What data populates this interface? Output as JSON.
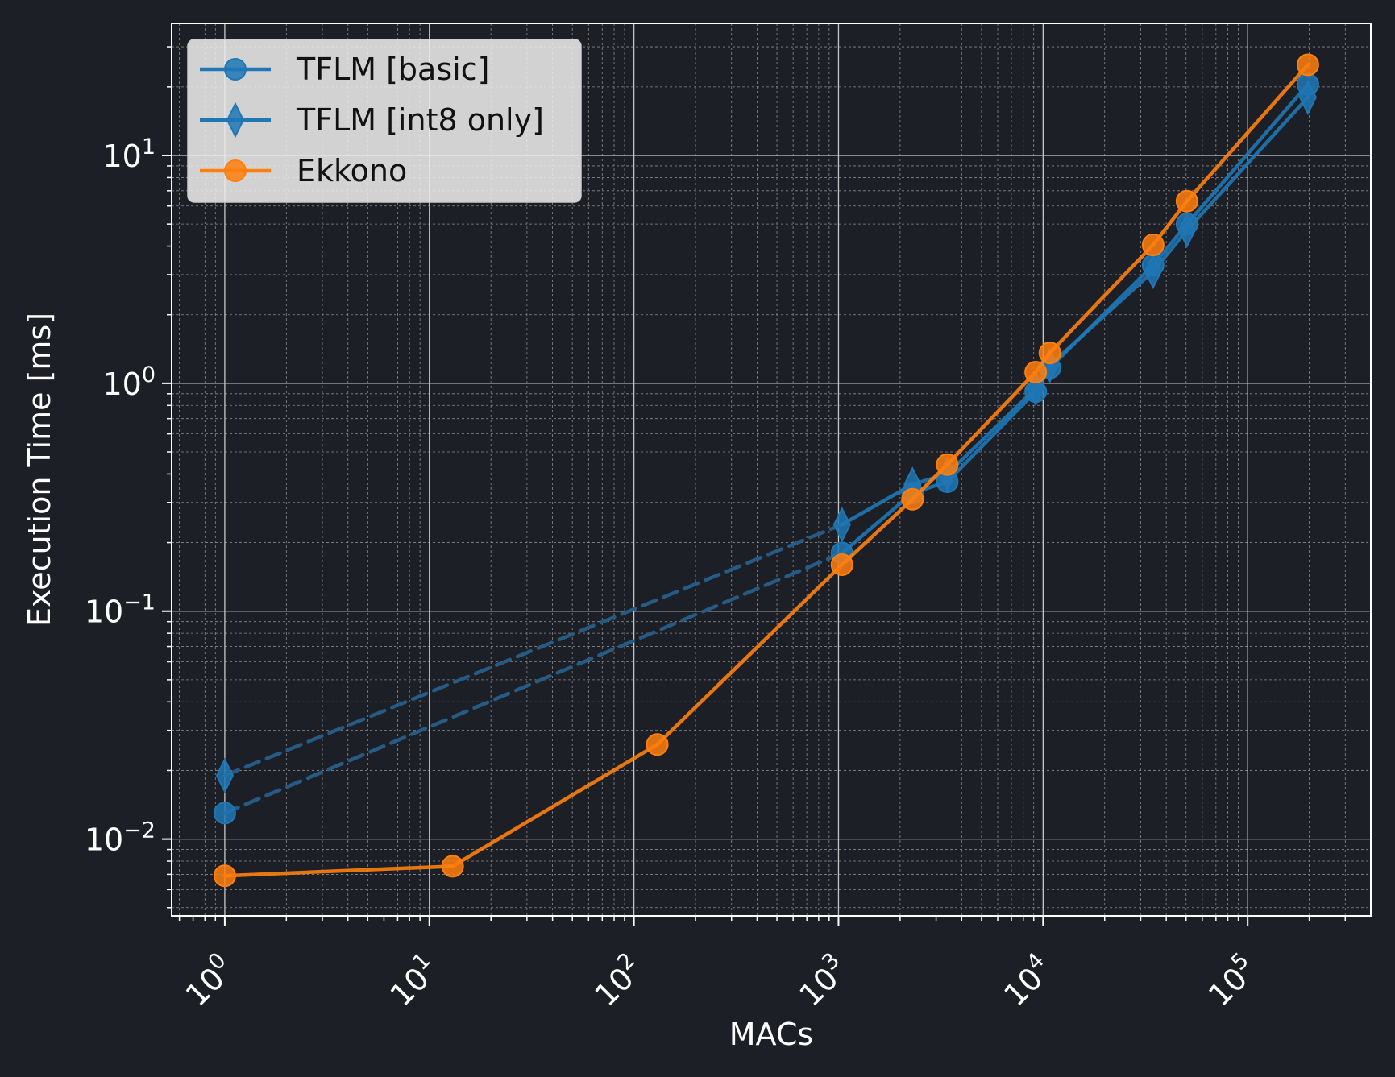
{
  "chart_data": {
    "type": "line",
    "title": "",
    "xlabel": "MACs",
    "ylabel": "Execution Time [ms]",
    "xscale": "log",
    "yscale": "log",
    "xlim": [
      0.55,
      400000
    ],
    "ylim": [
      0.0046,
      38
    ],
    "grid": "major and minor",
    "legend_position": "top-left",
    "x_ticks": [
      {
        "value": 1,
        "base": "10",
        "exp": "0"
      },
      {
        "value": 10,
        "base": "10",
        "exp": "1"
      },
      {
        "value": 100,
        "base": "10",
        "exp": "2"
      },
      {
        "value": 1000,
        "base": "10",
        "exp": "3"
      },
      {
        "value": 10000,
        "base": "10",
        "exp": "4"
      },
      {
        "value": 100000,
        "base": "10",
        "exp": "5"
      }
    ],
    "y_ticks": [
      {
        "value": 0.01,
        "base": "10",
        "exp": "−2"
      },
      {
        "value": 0.1,
        "base": "10",
        "exp": "−1"
      },
      {
        "value": 1,
        "base": "10",
        "exp": "0"
      },
      {
        "value": 10,
        "base": "10",
        "exp": "1"
      }
    ],
    "series": [
      {
        "name": "TFLM [basic]",
        "color": "#1f77b4",
        "marker": "circle",
        "x": [
          1,
          1040,
          2300,
          3400,
          9200,
          10800,
          34500,
          50500,
          197000
        ],
        "y": [
          0.013,
          0.18,
          0.33,
          0.37,
          0.92,
          1.17,
          3.3,
          5.0,
          20.5
        ],
        "dashed_segments": [
          [
            0,
            1
          ]
        ]
      },
      {
        "name": "TFLM [int8 only]",
        "color": "#1f77b4",
        "marker": "diamond",
        "x": [
          1,
          1040,
          2300,
          3400,
          9200,
          10800,
          34500,
          50500,
          197000
        ],
        "y": [
          0.019,
          0.24,
          0.36,
          0.4,
          0.95,
          1.2,
          3.1,
          4.7,
          18.0
        ],
        "dashed_segments": [
          [
            0,
            1
          ]
        ]
      },
      {
        "name": "Ekkono",
        "color": "#ff7f0e",
        "marker": "circle",
        "x": [
          1,
          13,
          130,
          1040,
          2300,
          3400,
          9200,
          10800,
          34500,
          50500,
          197000
        ],
        "y": [
          0.0069,
          0.0076,
          0.026,
          0.16,
          0.31,
          0.44,
          1.12,
          1.36,
          4.05,
          6.3,
          25.0
        ],
        "dashed_segments": []
      }
    ]
  }
}
